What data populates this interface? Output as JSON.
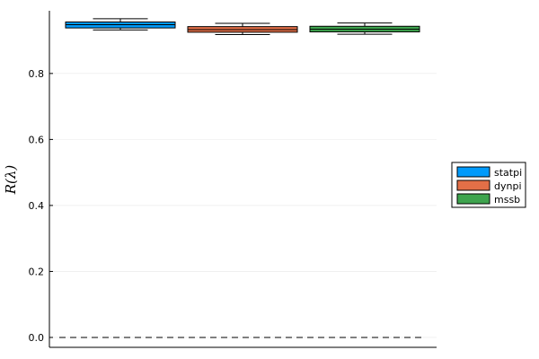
{
  "chart_data": {
    "type": "box",
    "ylabel": "R(λ)",
    "xlabel": "",
    "ylim": [
      -0.03,
      0.99
    ],
    "yticks": [
      0.0,
      0.2,
      0.4,
      0.6,
      0.8
    ],
    "ytick_labels": [
      "0.0",
      "0.2",
      "0.4",
      "0.6",
      "0.8"
    ],
    "grid": true,
    "legend_position": "right",
    "reference_line": {
      "y": 0.0,
      "style": "dashed"
    },
    "series": [
      {
        "name": "statpi",
        "color": "#009AFA",
        "whisker_low": 0.932,
        "q1": 0.938,
        "median": 0.948,
        "q3": 0.956,
        "whisker_high": 0.966
      },
      {
        "name": "dynpi",
        "color": "#E36F47",
        "whisker_low": 0.918,
        "q1": 0.925,
        "median": 0.933,
        "q3": 0.942,
        "whisker_high": 0.952
      },
      {
        "name": "mssb",
        "color": "#3EA44E",
        "whisker_low": 0.919,
        "q1": 0.926,
        "median": 0.934,
        "q3": 0.943,
        "whisker_high": 0.953
      }
    ]
  }
}
